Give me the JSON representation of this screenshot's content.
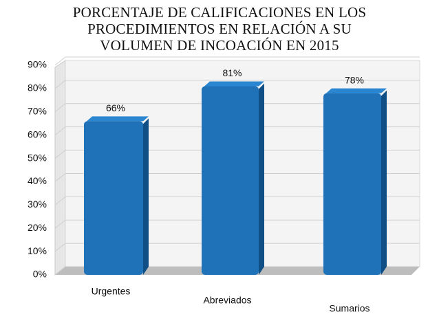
{
  "chart_data": {
    "type": "bar",
    "title": "PORCENTAJE DE CALIFICACIONES  EN LOS PROCEDIMIENTOS EN RELACIÓN A SU VOLUMEN DE INCOACIÓN EN 2015",
    "categories": [
      "Urgentes",
      "Abreviados",
      "Sumarios"
    ],
    "values": [
      66,
      81,
      78
    ],
    "value_labels": [
      "66%",
      "81%",
      "78%"
    ],
    "color": "#1f72b8",
    "ylim": [
      0,
      90
    ],
    "yticks": [
      {
        "value": 0,
        "label": "0%"
      },
      {
        "value": 10,
        "label": "10%"
      },
      {
        "value": 20,
        "label": "20%"
      },
      {
        "value": 30,
        "label": "30%"
      },
      {
        "value": 40,
        "label": "40%"
      },
      {
        "value": 50,
        "label": "50%"
      },
      {
        "value": 60,
        "label": "60%"
      },
      {
        "value": 70,
        "label": "70%"
      },
      {
        "value": 80,
        "label": "80%"
      },
      {
        "value": 90,
        "label": "90%"
      }
    ],
    "grid": true
  }
}
